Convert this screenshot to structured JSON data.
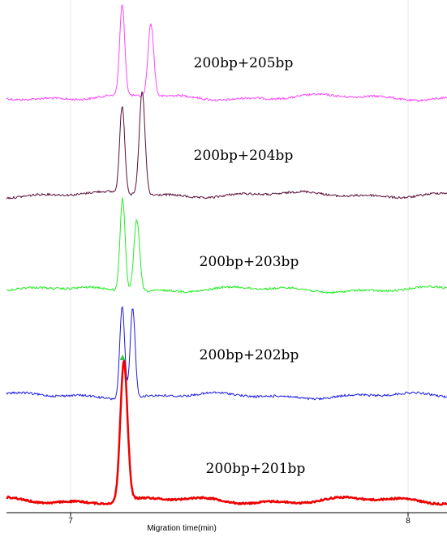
{
  "chart_data": {
    "type": "line",
    "title": "",
    "xlabel": "Migration time(min)",
    "ylabel": "",
    "xlim": [
      6.82,
      8.11
    ],
    "xticks": [
      7,
      8
    ],
    "xtick_labels": [
      "7",
      "8"
    ],
    "grid": "vertical lines at x ticks",
    "legend": "none",
    "series": [
      {
        "name": "200bp+205bp",
        "color": "#ff44ff",
        "stroke_width": 1,
        "baseline": 120,
        "noise": 1.4,
        "drift": 2.5,
        "peaks": [
          {
            "x": 7.153,
            "h": 111,
            "w": 0.0075
          },
          {
            "x": 7.238,
            "h": 90,
            "w": 0.0085
          }
        ]
      },
      {
        "name": "200bp+204bp",
        "color": "#5a1038",
        "stroke_width": 1,
        "baseline": 240,
        "noise": 1.4,
        "drift": 2.5,
        "peaks": [
          {
            "x": 7.153,
            "h": 108,
            "w": 0.0075
          },
          {
            "x": 7.212,
            "h": 128,
            "w": 0.0085
          }
        ]
      },
      {
        "name": "200bp+203bp",
        "color": "#22ee22",
        "stroke_width": 1,
        "baseline": 357,
        "noise": 1.4,
        "drift": 2.5,
        "peaks": [
          {
            "x": 7.154,
            "h": 115,
            "w": 0.0075
          },
          {
            "x": 7.196,
            "h": 89,
            "w": 0.0085
          }
        ]
      },
      {
        "name": "200bp+202bp",
        "color": "#1c1ce6",
        "stroke_width": 1,
        "baseline": 488,
        "noise": 1.4,
        "drift": 2.5,
        "peaks": [
          {
            "x": 7.153,
            "h": 114,
            "w": 0.0072
          },
          {
            "x": 7.184,
            "h": 112,
            "w": 0.0072
          }
        ]
      },
      {
        "name": "200bp+201bp",
        "color": "#ee0000",
        "stroke_width": 2.5,
        "baseline": 617,
        "noise": 1.1,
        "drift": 3,
        "peaks": [
          {
            "x": 7.158,
            "h": 172,
            "w": 0.0105
          }
        ]
      }
    ],
    "annotations": [
      {
        "type": "marker",
        "shape": "triangle",
        "color": "#33cc33",
        "x": 7.154,
        "near_series": "200bp+202bp"
      }
    ]
  }
}
